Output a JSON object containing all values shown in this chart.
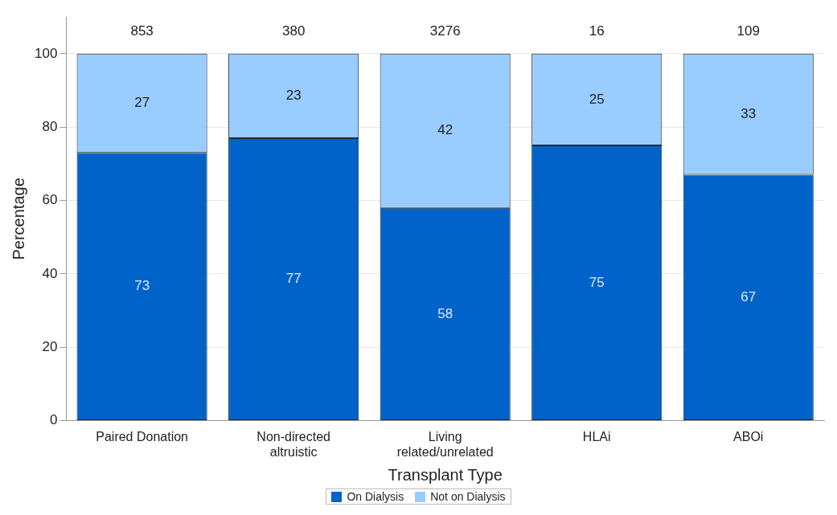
{
  "chart_data": {
    "type": "bar",
    "stacked": true,
    "xlabel": "Transplant Type",
    "ylabel": "Percentage",
    "categories": [
      "Paired Donation",
      "Non-directed altruistic",
      "Living related/unrelated",
      "HLAi",
      "ABOi"
    ],
    "series": [
      {
        "name": "On Dialysis",
        "color": "#0063c9",
        "values": [
          73,
          77,
          58,
          75,
          67
        ]
      },
      {
        "name": "Not on Dialysis",
        "color": "#99ccff",
        "values": [
          27,
          23,
          42,
          25,
          33
        ]
      }
    ],
    "annotations": [
      "853",
      "380",
      "3276",
      "16",
      "109"
    ],
    "data_labels": true,
    "ylim": [
      0,
      110
    ],
    "yticks": [
      0,
      20,
      40,
      60,
      80,
      100
    ],
    "grid": "y",
    "legend": "bottom"
  }
}
